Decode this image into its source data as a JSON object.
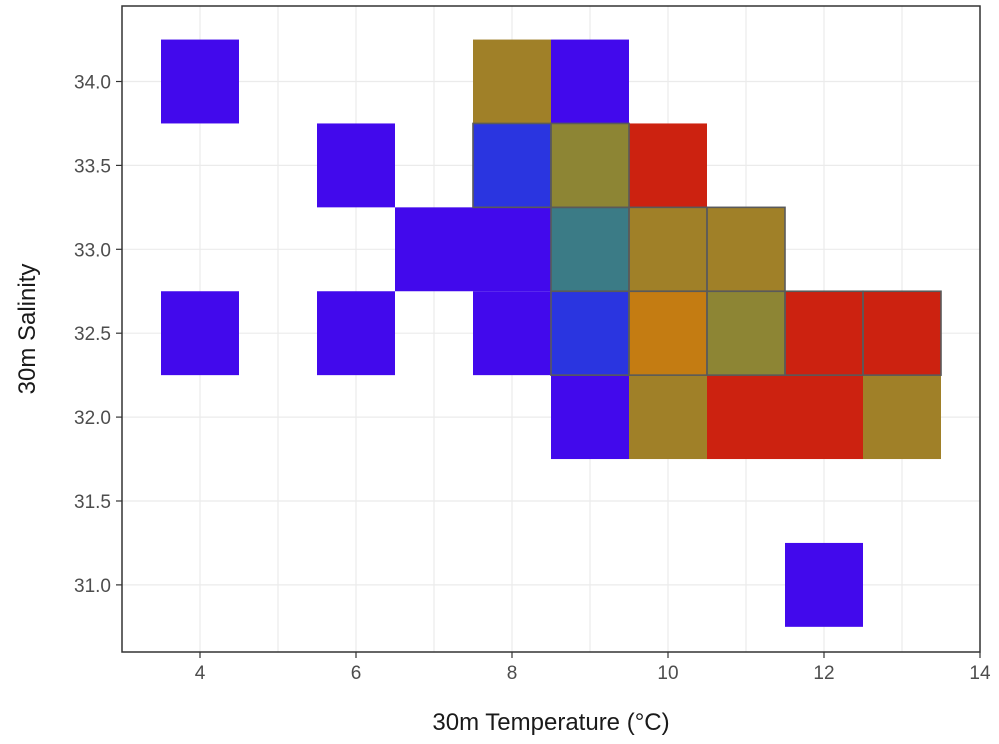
{
  "chart_data": {
    "type": "heatmap",
    "title": "",
    "xlabel": "30m Temperature (°C)",
    "ylabel": "30m Salinity",
    "xlim": [
      3,
      14
    ],
    "ylim": [
      30.6,
      34.45
    ],
    "xticks": [
      4,
      6,
      8,
      10,
      12,
      14
    ],
    "yticks": [
      31.0,
      31.5,
      32.0,
      32.5,
      33.0,
      33.5,
      34.0
    ],
    "ytick_labels": [
      "31.0",
      "31.5",
      "32.0",
      "32.5",
      "33.0",
      "33.5",
      "34.0"
    ],
    "grid": true,
    "legend": "none",
    "cell_width": 1,
    "cell_height": 0.5,
    "colors": {
      "violet": "#4209ec",
      "blue": "#2a35e0",
      "teal": "#3b7b86",
      "olive": "#8d8534",
      "ochre": "#a08028",
      "orange": "#c47c12",
      "red": "#cc2210",
      "outline": "#5a5a5a"
    },
    "cells": [
      {
        "x": 4,
        "y": 34.0,
        "color": "violet"
      },
      {
        "x": 8,
        "y": 34.0,
        "color": "ochre"
      },
      {
        "x": 9,
        "y": 34.0,
        "color": "violet"
      },
      {
        "x": 6,
        "y": 33.5,
        "color": "violet"
      },
      {
        "x": 8,
        "y": 33.5,
        "color": "blue",
        "outlined": true
      },
      {
        "x": 9,
        "y": 33.5,
        "color": "olive",
        "outlined": true
      },
      {
        "x": 10,
        "y": 33.5,
        "color": "red"
      },
      {
        "x": 7,
        "y": 33.0,
        "color": "violet"
      },
      {
        "x": 8,
        "y": 33.0,
        "color": "violet"
      },
      {
        "x": 9,
        "y": 33.0,
        "color": "teal",
        "outlined": true
      },
      {
        "x": 10,
        "y": 33.0,
        "color": "ochre",
        "outlined": true
      },
      {
        "x": 11,
        "y": 33.0,
        "color": "ochre",
        "outlined": true
      },
      {
        "x": 4,
        "y": 32.5,
        "color": "violet"
      },
      {
        "x": 6,
        "y": 32.5,
        "color": "violet"
      },
      {
        "x": 8,
        "y": 32.5,
        "color": "violet"
      },
      {
        "x": 9,
        "y": 32.5,
        "color": "blue",
        "outlined": true
      },
      {
        "x": 10,
        "y": 32.5,
        "color": "orange",
        "outlined": true
      },
      {
        "x": 11,
        "y": 32.5,
        "color": "olive",
        "outlined": true
      },
      {
        "x": 12,
        "y": 32.5,
        "color": "red",
        "outlined": true
      },
      {
        "x": 13,
        "y": 32.5,
        "color": "red",
        "outlined": true
      },
      {
        "x": 9,
        "y": 32.0,
        "color": "violet"
      },
      {
        "x": 10,
        "y": 32.0,
        "color": "ochre"
      },
      {
        "x": 11,
        "y": 32.0,
        "color": "red"
      },
      {
        "x": 12,
        "y": 32.0,
        "color": "red"
      },
      {
        "x": 13,
        "y": 32.0,
        "color": "ochre"
      },
      {
        "x": 12,
        "y": 31.0,
        "color": "violet"
      }
    ]
  }
}
